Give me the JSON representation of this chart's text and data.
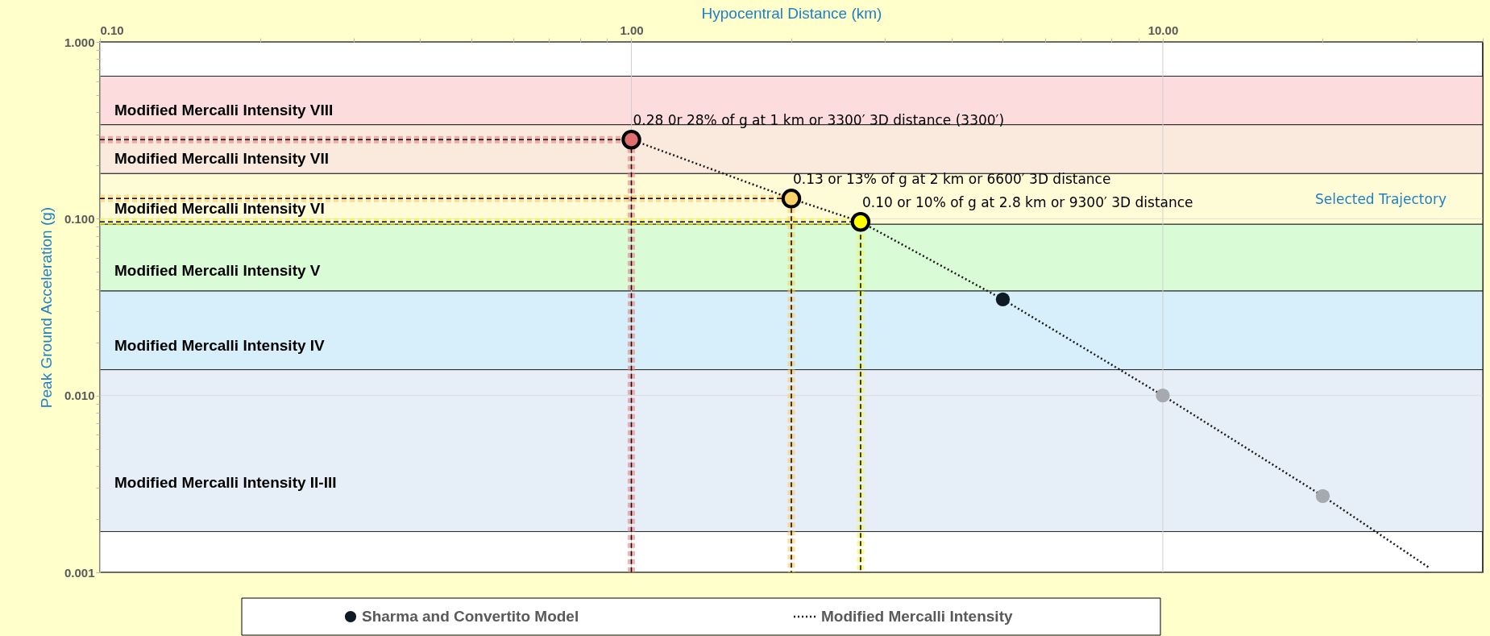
{
  "chart_data": {
    "type": "scatter",
    "xlabel": "Hypocentral Distance (km)",
    "ylabel": "Peak Ground Acceleration (g)",
    "log": "xy",
    "grid": true,
    "legend": "bottom",
    "xlim": [
      0.1,
      40
    ],
    "ylim": [
      0.001,
      1
    ],
    "xticks": [
      {
        "value": 0.1,
        "label": "0.10"
      },
      {
        "value": 0.2,
        "label": null
      },
      {
        "value": 0.3,
        "label": null
      },
      {
        "value": 0.4,
        "label": null
      },
      {
        "value": 0.5,
        "label": null
      },
      {
        "value": 0.6,
        "label": null
      },
      {
        "value": 0.7,
        "label": null
      },
      {
        "value": 0.8,
        "label": null
      },
      {
        "value": 0.9,
        "label": null
      },
      {
        "value": 1,
        "label": "1.00"
      },
      {
        "value": 2,
        "label": null
      },
      {
        "value": 3,
        "label": null
      },
      {
        "value": 4,
        "label": null
      },
      {
        "value": 5,
        "label": null
      },
      {
        "value": 6,
        "label": null
      },
      {
        "value": 7,
        "label": null
      },
      {
        "value": 8,
        "label": null
      },
      {
        "value": 9,
        "label": null
      },
      {
        "value": 10,
        "label": "10.00"
      },
      {
        "value": 20,
        "label": null
      },
      {
        "value": 30,
        "label": null
      },
      {
        "value": 40,
        "label": null
      }
    ],
    "yticks": [
      {
        "value": 0.001,
        "label": "0.001"
      },
      {
        "value": 0.002,
        "label": null
      },
      {
        "value": 0.003,
        "label": null
      },
      {
        "value": 0.004,
        "label": null
      },
      {
        "value": 0.005,
        "label": null
      },
      {
        "value": 0.006,
        "label": null
      },
      {
        "value": 0.007,
        "label": null
      },
      {
        "value": 0.008,
        "label": null
      },
      {
        "value": 0.009,
        "label": null
      },
      {
        "value": 0.01,
        "label": "0.010"
      },
      {
        "value": 0.02,
        "label": null
      },
      {
        "value": 0.03,
        "label": null
      },
      {
        "value": 0.04,
        "label": null
      },
      {
        "value": 0.05,
        "label": null
      },
      {
        "value": 0.06,
        "label": null
      },
      {
        "value": 0.07,
        "label": null
      },
      {
        "value": 0.08,
        "label": null
      },
      {
        "value": 0.09,
        "label": null
      },
      {
        "value": 0.1,
        "label": "0.100"
      },
      {
        "value": 0.2,
        "label": null
      },
      {
        "value": 0.3,
        "label": null
      },
      {
        "value": 0.4,
        "label": null
      },
      {
        "value": 0.5,
        "label": null
      },
      {
        "value": 0.6,
        "label": null
      },
      {
        "value": 0.7,
        "label": null
      },
      {
        "value": 0.8,
        "label": null
      },
      {
        "value": 0.9,
        "label": null
      },
      {
        "value": 1,
        "label": "1.000"
      }
    ],
    "bands": [
      {
        "axis": "y",
        "from": 0.34,
        "to": 0.64,
        "label": "Modified Mercalli Intensity VIII",
        "color": "#fcdcdc"
      },
      {
        "axis": "y",
        "from": 0.18,
        "to": 0.34,
        "label": "Modified Mercalli Intensity VII",
        "color": "#faeade"
      },
      {
        "axis": "y",
        "from": 0.093,
        "to": 0.18,
        "label": "Modified Mercalli Intensity VI",
        "color": "#fefcd6"
      },
      {
        "axis": "y",
        "from": 0.039,
        "to": 0.093,
        "label": "Modified Mercalli Intensity V",
        "color": "#d9fcd6"
      },
      {
        "axis": "y",
        "from": 0.014,
        "to": 0.039,
        "label": "Modified Mercalli Intensity IV",
        "color": "#d6effa"
      },
      {
        "axis": "y",
        "from": 0.0017,
        "to": 0.014,
        "label": "Modified Mercalli Intensity II-III",
        "color": "#e6eef8"
      }
    ],
    "series": [
      {
        "type": "line",
        "color": "#ef7f7f",
        "line_style": "dashed",
        "x": [
          0.1,
          1,
          1
        ],
        "values": [
          0.28,
          0.28,
          0.001
        ]
      },
      {
        "type": "line",
        "color": "#fdc860",
        "line_style": "dashed",
        "x": [
          0.1,
          2,
          2
        ],
        "values": [
          0.13,
          0.13,
          0.001
        ]
      },
      {
        "type": "line",
        "color": "#f5f53a",
        "line_style": "dashed",
        "x": [
          0.1,
          2.7,
          2.7
        ],
        "values": [
          0.096,
          0.096,
          0.001
        ]
      },
      {
        "type": "line",
        "name": "Modified Mercalli Intensity",
        "color": "#1a1a1a",
        "line_style": "dotted",
        "x": [
          1,
          2,
          2.7,
          5,
          10,
          20,
          31.6
        ],
        "values": [
          0.28,
          0.13,
          0.096,
          0.035,
          0.01,
          0.0027,
          0.00107
        ]
      },
      {
        "name": "Sharma and Convertito Model",
        "colors": [
          "#0e1b24",
          "#a6a9ae",
          "#a6a9ae"
        ],
        "x": [
          5,
          10,
          20
        ],
        "values": [
          0.035,
          0.01,
          0.0027
        ]
      },
      {
        "colors": [
          "#e07070",
          "#fdd06a",
          "#ffff00"
        ],
        "x": [
          1,
          2,
          2.7
        ],
        "values": [
          0.28,
          0.13,
          0.096
        ]
      }
    ],
    "annotations": [
      {
        "text": "0.28 0r 28% of g at 1 km or 3300′ 3D distance (3300′)",
        "x": 1,
        "y": 0.28
      },
      {
        "text": "0.13 or 13% of g at 2 km or 6600′ 3D distance",
        "x": 2,
        "y": 0.13
      },
      {
        "text": "0.10 or 10% of g at 2.8 km or 9300′ 3D distance",
        "x": 2.7,
        "y": 0.096
      },
      "Selected Trajectory"
    ]
  }
}
